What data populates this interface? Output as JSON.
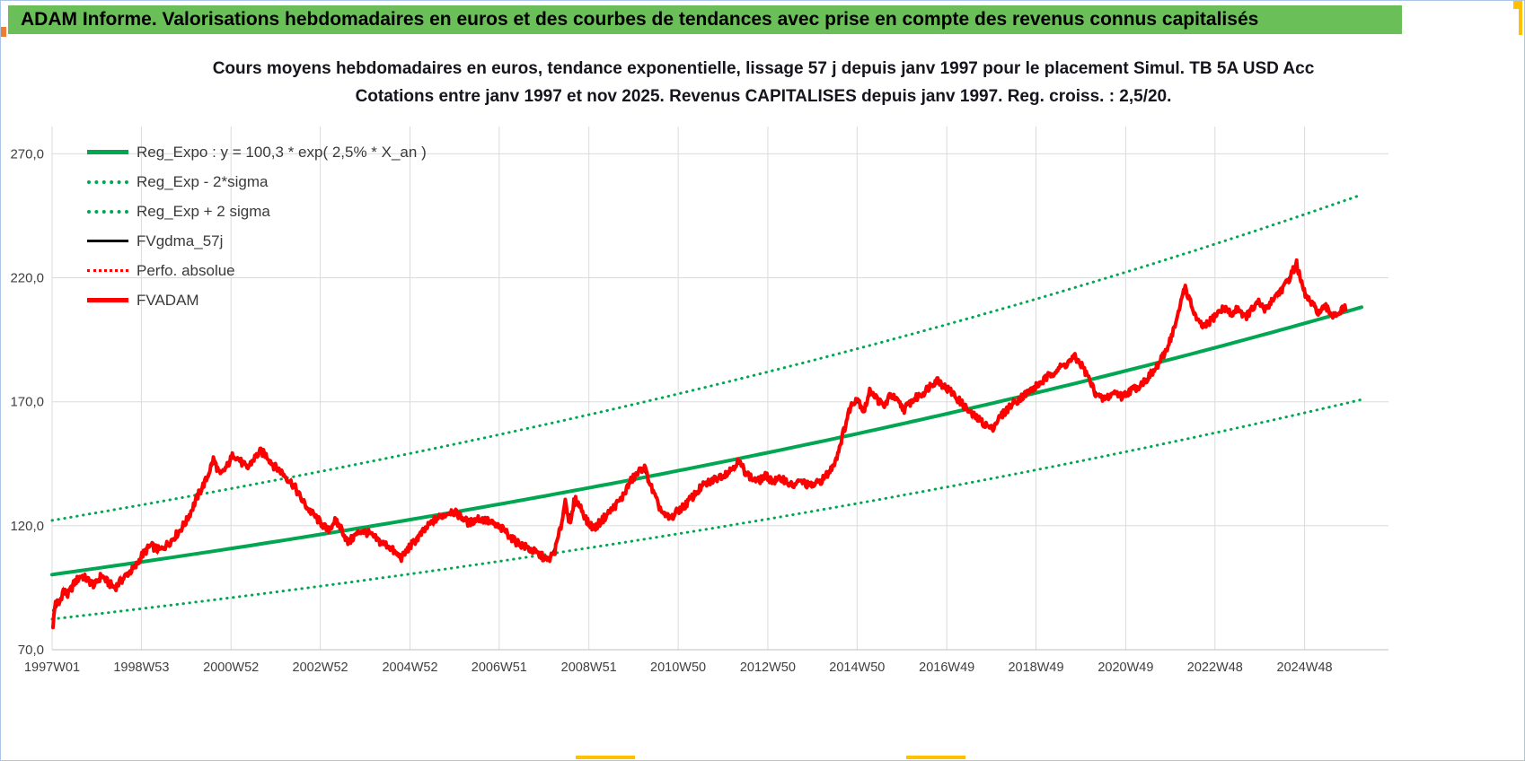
{
  "title_bar": {
    "text": "ADAM Informe. Valorisations hebdomadaires en euros et des courbes de tendances avec prise en compte des revenus connus capitalisés"
  },
  "colors": {
    "bar_green": "#6ABF58",
    "border_blue": "#A9C6E8",
    "accent_yellow": "#FFC000",
    "accent_orange": "#ED7D31"
  },
  "chart_data": {
    "type": "line",
    "title": [
      "Cours moyens hebdomadaires en euros, tendance exponentielle, lissage 57 j depuis janv 1997 pour le placement Simul. TB 5A USD Acc",
      "Cotations entre janv 1997 et nov 2025. Revenus CAPITALISES depuis janv 1997. Reg. croiss. : 2,5/20."
    ],
    "xlim": [
      1997.0,
      2026.8
    ],
    "ylim": [
      70,
      281
    ],
    "grid": true,
    "legend_position": "top-left",
    "y_ticks": [
      {
        "v": 70,
        "label": "70,0"
      },
      {
        "v": 120,
        "label": "120,0"
      },
      {
        "v": 170,
        "label": "170,0"
      },
      {
        "v": 220,
        "label": "220,0"
      },
      {
        "v": 270,
        "label": "270,0"
      }
    ],
    "x_ticks": [
      {
        "t": 1997.0,
        "label": "1997W01"
      },
      {
        "t": 1998.99,
        "label": "1998W53"
      },
      {
        "t": 2000.99,
        "label": "2000W52"
      },
      {
        "t": 2002.98,
        "label": "2002W52"
      },
      {
        "t": 2004.98,
        "label": "2004W52"
      },
      {
        "t": 2006.97,
        "label": "2006W51"
      },
      {
        "t": 2008.97,
        "label": "2008W51"
      },
      {
        "t": 2010.96,
        "label": "2010W50"
      },
      {
        "t": 2012.96,
        "label": "2012W50"
      },
      {
        "t": 2014.95,
        "label": "2014W50"
      },
      {
        "t": 2016.95,
        "label": "2016W49"
      },
      {
        "t": 2018.94,
        "label": "2018W49"
      },
      {
        "t": 2020.94,
        "label": "2020W49"
      },
      {
        "t": 2022.93,
        "label": "2022W48"
      },
      {
        "t": 2024.93,
        "label": "2024W48"
      }
    ],
    "legend": [
      {
        "label": "Reg_Expo : y = 100,3 * exp( 2,5% *  X_an )",
        "series": "reg_expo",
        "style": "green-solid"
      },
      {
        "label": "Reg_Exp - 2*sigma",
        "series": "reg_minus_2sigma",
        "style": "green-dotted"
      },
      {
        "label": "Reg_Exp + 2 sigma",
        "series": "reg_plus_2sigma",
        "style": "green-dotted"
      },
      {
        "label": "FVgdma_57j",
        "series": "fvgdma_57j",
        "style": "black-solid"
      },
      {
        "label": "Perfo. absolue",
        "series": "perfo_absolue",
        "style": "red-dotted"
      },
      {
        "label": "FVADAM",
        "series": "fvadam",
        "style": "red-solid"
      }
    ],
    "regression": {
      "formula": "y = 100,3 * exp( 2,5% * X_an )",
      "a": 100.3,
      "annual_rate": 0.025,
      "x0": 1997.0,
      "two_sigma_factor": 1.218,
      "draw_from": 1997.0,
      "draw_to": 2026.35
    },
    "colors": {
      "green": "#00A651",
      "red": "#FF0000",
      "black": "#000000",
      "grid": "#DBDBDB",
      "axis_line": "#BFBFBF",
      "axis_text": "#3f3f3f"
    },
    "jitter": 1.6,
    "smooth_window": 9,
    "fvadam_points": [
      [
        1997.02,
        80
      ],
      [
        1997.08,
        90
      ],
      [
        1997.15,
        88
      ],
      [
        1997.25,
        94
      ],
      [
        1997.35,
        92
      ],
      [
        1997.5,
        97
      ],
      [
        1997.65,
        100
      ],
      [
        1997.8,
        98
      ],
      [
        1997.95,
        96
      ],
      [
        1998.1,
        100
      ],
      [
        1998.25,
        97
      ],
      [
        1998.4,
        95
      ],
      [
        1998.55,
        98
      ],
      [
        1998.7,
        101
      ],
      [
        1998.85,
        103
      ],
      [
        1999.0,
        108
      ],
      [
        1999.2,
        112
      ],
      [
        1999.4,
        110
      ],
      [
        1999.6,
        113
      ],
      [
        1999.8,
        117
      ],
      [
        2000.0,
        122
      ],
      [
        2000.15,
        128
      ],
      [
        2000.3,
        134
      ],
      [
        2000.45,
        139
      ],
      [
        2000.6,
        147
      ],
      [
        2000.75,
        140
      ],
      [
        2000.9,
        144
      ],
      [
        2001.05,
        149
      ],
      [
        2001.2,
        146
      ],
      [
        2001.35,
        143
      ],
      [
        2001.5,
        147
      ],
      [
        2001.65,
        150
      ],
      [
        2001.8,
        148
      ],
      [
        2001.95,
        144
      ],
      [
        2002.1,
        142
      ],
      [
        2002.25,
        139
      ],
      [
        2002.4,
        136
      ],
      [
        2002.55,
        131
      ],
      [
        2002.7,
        127
      ],
      [
        2002.85,
        124
      ],
      [
        2003.0,
        121
      ],
      [
        2003.15,
        118
      ],
      [
        2003.3,
        122
      ],
      [
        2003.45,
        119
      ],
      [
        2003.6,
        113
      ],
      [
        2003.75,
        116
      ],
      [
        2003.9,
        118
      ],
      [
        2004.05,
        117
      ],
      [
        2004.2,
        115
      ],
      [
        2004.35,
        113
      ],
      [
        2004.5,
        112
      ],
      [
        2004.65,
        109
      ],
      [
        2004.8,
        107
      ],
      [
        2004.95,
        111
      ],
      [
        2005.1,
        114
      ],
      [
        2005.3,
        118
      ],
      [
        2005.5,
        122
      ],
      [
        2005.7,
        124
      ],
      [
        2005.9,
        126
      ],
      [
        2006.1,
        124
      ],
      [
        2006.3,
        121
      ],
      [
        2006.5,
        123
      ],
      [
        2006.7,
        122
      ],
      [
        2006.9,
        120
      ],
      [
        2007.1,
        118
      ],
      [
        2007.3,
        114
      ],
      [
        2007.5,
        112
      ],
      [
        2007.7,
        110
      ],
      [
        2007.9,
        108
      ],
      [
        2008.05,
        106
      ],
      [
        2008.2,
        109
      ],
      [
        2008.35,
        120
      ],
      [
        2008.45,
        131
      ],
      [
        2008.55,
        119
      ],
      [
        2008.65,
        131
      ],
      [
        2008.8,
        127
      ],
      [
        2008.95,
        121
      ],
      [
        2009.1,
        119
      ],
      [
        2009.3,
        123
      ],
      [
        2009.5,
        127
      ],
      [
        2009.7,
        131
      ],
      [
        2009.9,
        138
      ],
      [
        2010.1,
        142
      ],
      [
        2010.2,
        144
      ],
      [
        2010.35,
        136
      ],
      [
        2010.5,
        129
      ],
      [
        2010.65,
        124
      ],
      [
        2010.8,
        123
      ],
      [
        2010.95,
        126
      ],
      [
        2011.1,
        128
      ],
      [
        2011.3,
        132
      ],
      [
        2011.5,
        136
      ],
      [
        2011.7,
        138
      ],
      [
        2011.9,
        140
      ],
      [
        2012.1,
        142
      ],
      [
        2012.3,
        146
      ],
      [
        2012.45,
        142
      ],
      [
        2012.6,
        139
      ],
      [
        2012.75,
        138
      ],
      [
        2012.9,
        140
      ],
      [
        2013.1,
        138
      ],
      [
        2013.3,
        139
      ],
      [
        2013.5,
        136
      ],
      [
        2013.7,
        138
      ],
      [
        2013.9,
        136
      ],
      [
        2014.05,
        137
      ],
      [
        2014.2,
        139
      ],
      [
        2014.35,
        142
      ],
      [
        2014.5,
        148
      ],
      [
        2014.65,
        158
      ],
      [
        2014.8,
        168
      ],
      [
        2014.95,
        172
      ],
      [
        2015.1,
        166
      ],
      [
        2015.25,
        175
      ],
      [
        2015.4,
        171
      ],
      [
        2015.55,
        168
      ],
      [
        2015.7,
        173
      ],
      [
        2015.85,
        170
      ],
      [
        2016.0,
        167
      ],
      [
        2016.15,
        170
      ],
      [
        2016.3,
        172
      ],
      [
        2016.45,
        174
      ],
      [
        2016.6,
        177
      ],
      [
        2016.75,
        179
      ],
      [
        2016.9,
        176
      ],
      [
        2017.05,
        174
      ],
      [
        2017.2,
        171
      ],
      [
        2017.35,
        168
      ],
      [
        2017.5,
        165
      ],
      [
        2017.65,
        163
      ],
      [
        2017.8,
        161
      ],
      [
        2017.95,
        159
      ],
      [
        2018.1,
        163
      ],
      [
        2018.25,
        166
      ],
      [
        2018.4,
        169
      ],
      [
        2018.55,
        171
      ],
      [
        2018.7,
        173
      ],
      [
        2018.85,
        175
      ],
      [
        2019.0,
        177
      ],
      [
        2019.2,
        180
      ],
      [
        2019.4,
        183
      ],
      [
        2019.6,
        185
      ],
      [
        2019.8,
        188
      ],
      [
        2019.95,
        185
      ],
      [
        2020.1,
        180
      ],
      [
        2020.25,
        174
      ],
      [
        2020.4,
        171
      ],
      [
        2020.55,
        172
      ],
      [
        2020.7,
        174
      ],
      [
        2020.85,
        172
      ],
      [
        2021.0,
        174
      ],
      [
        2021.2,
        176
      ],
      [
        2021.4,
        179
      ],
      [
        2021.6,
        183
      ],
      [
        2021.8,
        189
      ],
      [
        2021.95,
        196
      ],
      [
        2022.1,
        204
      ],
      [
        2022.25,
        217
      ],
      [
        2022.4,
        209
      ],
      [
        2022.55,
        202
      ],
      [
        2022.7,
        200
      ],
      [
        2022.85,
        203
      ],
      [
        2023.0,
        206
      ],
      [
        2023.15,
        208
      ],
      [
        2023.3,
        205
      ],
      [
        2023.45,
        208
      ],
      [
        2023.6,
        204
      ],
      [
        2023.75,
        207
      ],
      [
        2023.9,
        210
      ],
      [
        2024.05,
        207
      ],
      [
        2024.2,
        211
      ],
      [
        2024.35,
        214
      ],
      [
        2024.5,
        217
      ],
      [
        2024.65,
        222
      ],
      [
        2024.75,
        226
      ],
      [
        2024.85,
        218
      ],
      [
        2024.95,
        213
      ],
      [
        2025.1,
        209
      ],
      [
        2025.25,
        206
      ],
      [
        2025.4,
        208
      ],
      [
        2025.55,
        205
      ],
      [
        2025.7,
        206
      ],
      [
        2025.85,
        208
      ]
    ]
  }
}
